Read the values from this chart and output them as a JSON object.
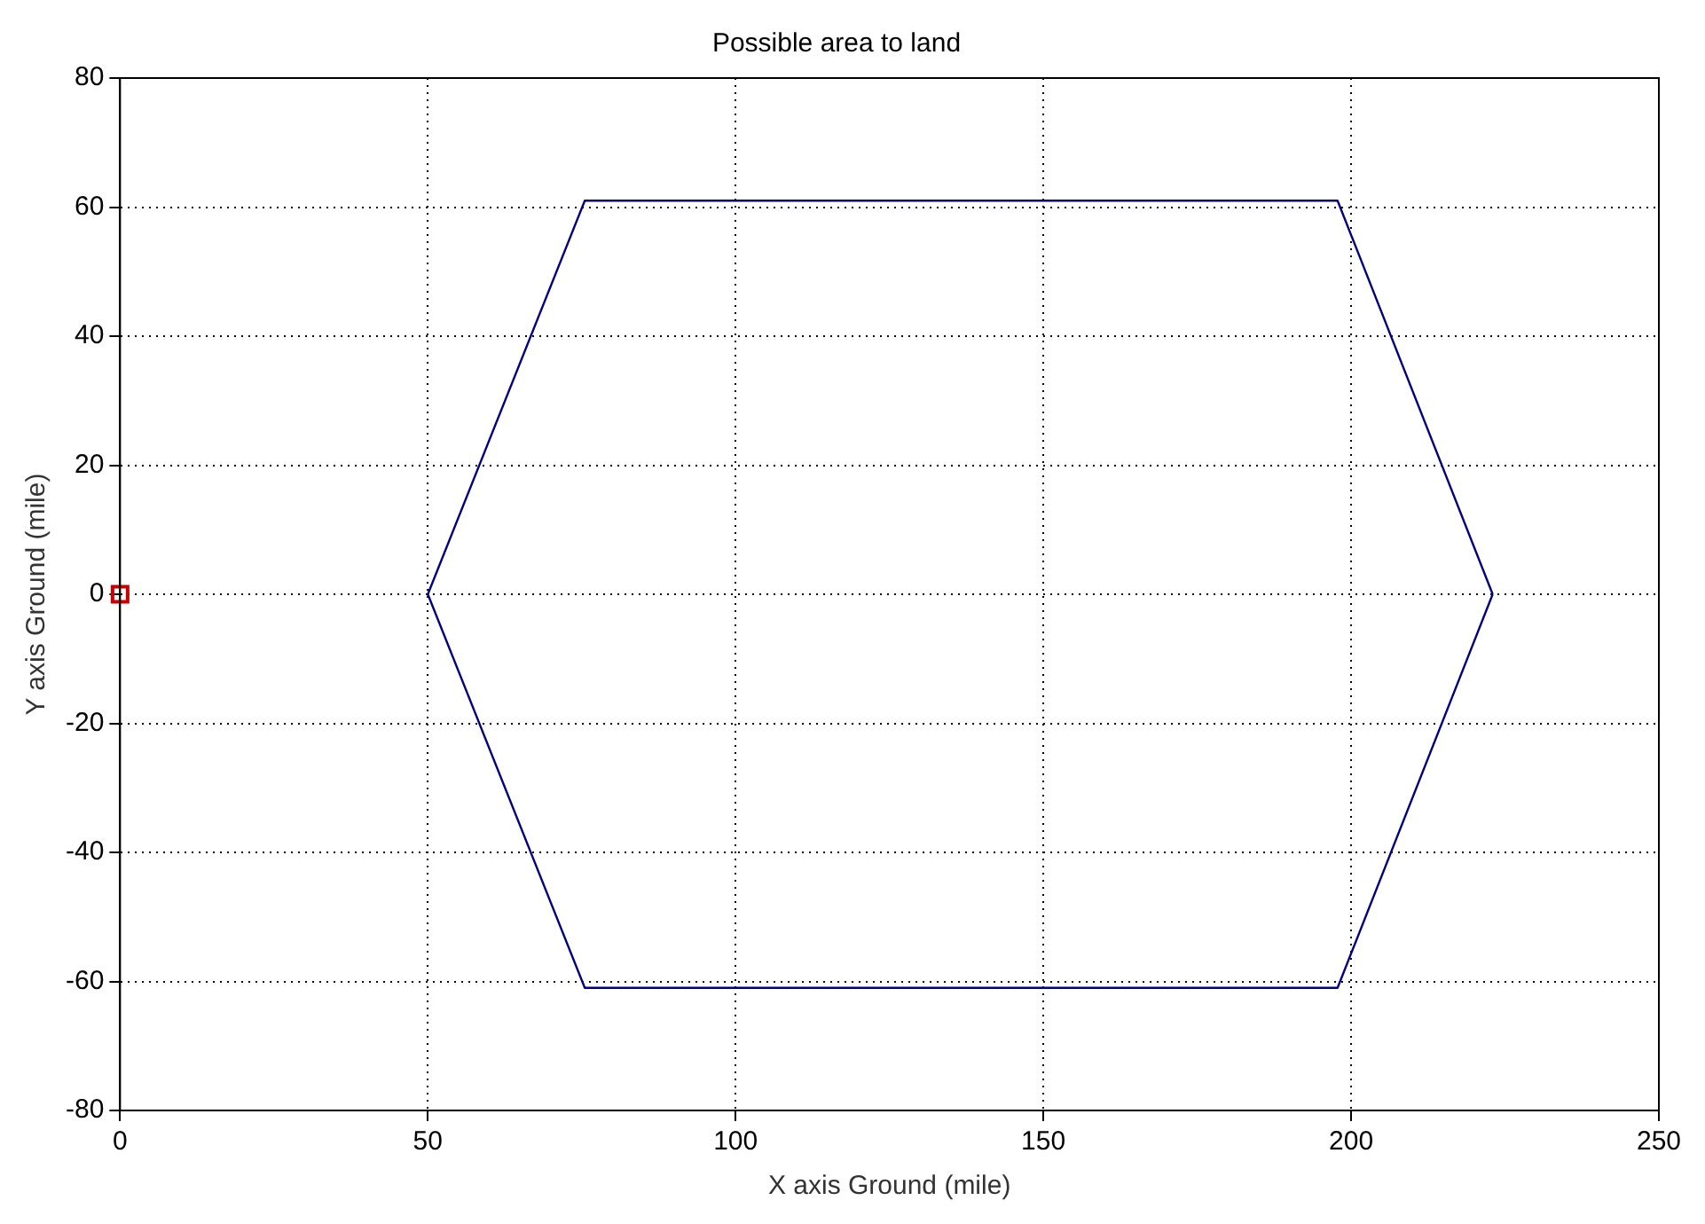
{
  "chart_data": {
    "type": "line",
    "title": "Possible area to land",
    "xlabel": "X axis Ground (mile)",
    "ylabel": "Y axis Ground (mile)",
    "xlim": [
      0,
      250
    ],
    "xticks": [
      0,
      50,
      100,
      150,
      200,
      250
    ],
    "ylim": [
      -80,
      80
    ],
    "yticks": [
      -80,
      -60,
      -40,
      -20,
      0,
      20,
      40,
      60,
      80
    ],
    "grid": true,
    "legend": false,
    "series": [
      {
        "type": "line",
        "color": "#00007f",
        "x": [
          50,
          75.5,
          197.8,
          223
        ],
        "values": [
          0,
          61,
          61,
          0
        ],
        "marker": "none",
        "line_style": "solid"
      },
      {
        "type": "line",
        "color": "#00007f",
        "x": [
          50,
          75.5,
          197.8,
          223
        ],
        "values": [
          0,
          -61,
          -61,
          0
        ],
        "marker": "none",
        "line_style": "solid"
      },
      {
        "type": "scatter",
        "color": "#cc0000",
        "x": [
          0
        ],
        "values": [
          0
        ],
        "marker": "square"
      }
    ]
  }
}
